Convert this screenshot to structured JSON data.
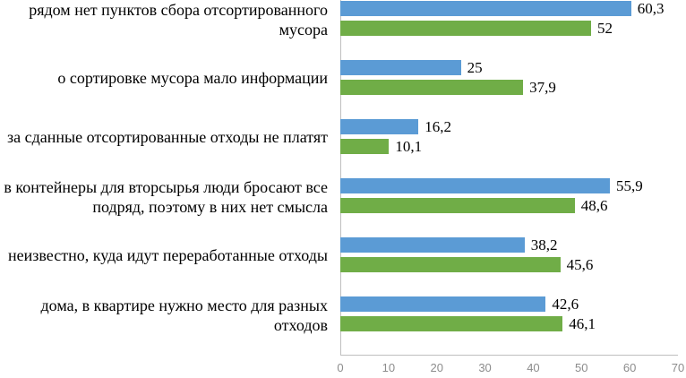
{
  "chart_data": {
    "type": "bar",
    "orientation": "horizontal",
    "grid": false,
    "legend": false,
    "categories": [
      "рядом нет пунктов сбора отсортированного мусора",
      "о сортировке мусора мало информации",
      "за сданные отсортированные отходы не платят",
      "в контейнеры для вторсырья люди бросают все подряд, поэтому в них нет смысла",
      "неизвестно, куда идут переработанные отходы",
      "дома, в квартире нужно место для разных отходов"
    ],
    "series": [
      {
        "name": "blue-series",
        "color": "#5B9BD5",
        "values": [
          60.3,
          25,
          16.2,
          55.9,
          38.2,
          42.6
        ],
        "labels": [
          "60,3",
          "25",
          "16,2",
          "55,9",
          "38,2",
          "42,6"
        ]
      },
      {
        "name": "green-series",
        "color": "#70AD47",
        "values": [
          52,
          37.9,
          10.1,
          48.6,
          45.6,
          46.1
        ],
        "labels": [
          "52",
          "37,9",
          "10,1",
          "48,6",
          "45,6",
          "46,1"
        ]
      }
    ],
    "xlim": [
      0,
      70
    ],
    "xticks": [
      "0",
      "10",
      "20",
      "30",
      "40",
      "50",
      "60",
      "70"
    ],
    "axis_color": "#BFBFBF",
    "tick_label_color": "#8C8C8C"
  }
}
